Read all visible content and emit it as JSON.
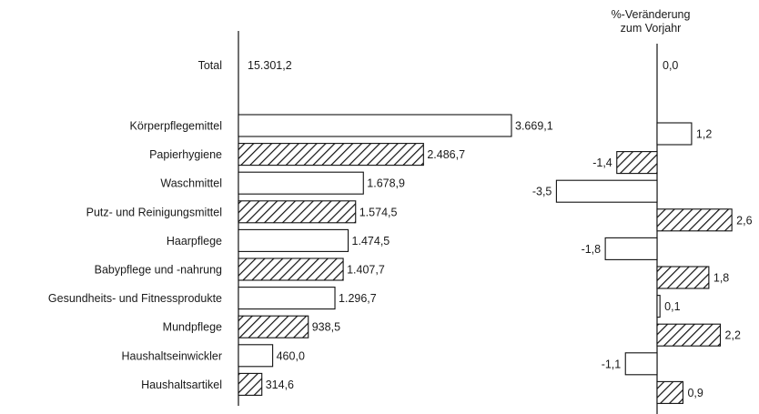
{
  "chart_data": [
    {
      "type": "bar",
      "orientation": "horizontal",
      "total": {
        "label": "Total",
        "value_text": "15.301,2",
        "value": 15301.2
      },
      "categories": [
        "Körperpflegemittel",
        "Papierhygiene",
        "Waschmittel",
        "Putz- und Reinigungsmittel",
        "Haarpflege",
        "Babypflege und -nahrung",
        "Gesundheits- und Fitnessprodukte",
        "Mundpflege",
        "Haushaltseinwickler",
        "Haushaltsartikel"
      ],
      "values": [
        3669.1,
        2486.7,
        1678.9,
        1574.5,
        1474.5,
        1407.7,
        1296.7,
        938.5,
        460.0,
        314.6
      ],
      "value_labels": [
        "3.669,1",
        "2.486,7",
        "1.678,9",
        "1.574,5",
        "1.474,5",
        "1.407,7",
        "1.296,7",
        "938,5",
        "460,0",
        "314,6"
      ],
      "bar_styles": [
        "plain",
        "hatched",
        "plain",
        "hatched",
        "plain",
        "hatched",
        "plain",
        "hatched",
        "plain",
        "hatched"
      ],
      "xlim": [
        0,
        3669.1
      ],
      "grid": false
    },
    {
      "type": "bar",
      "orientation": "horizontal",
      "title_lines": [
        "%-Veränderung",
        "zum Vorjahr"
      ],
      "total": {
        "value_text": "0,0",
        "value": 0.0
      },
      "values": [
        1.2,
        -1.4,
        -3.5,
        2.6,
        -1.8,
        1.8,
        0.1,
        2.2,
        -1.1,
        0.9
      ],
      "value_labels": [
        "1,2",
        "-1,4",
        "-3,5",
        "2,6",
        "-1,8",
        "1,8",
        "0,1",
        "2,2",
        "-1,1",
        "0,9"
      ],
      "bar_styles": [
        "plain",
        "hatched",
        "plain",
        "hatched",
        "plain",
        "hatched",
        "plain",
        "hatched",
        "plain",
        "hatched"
      ],
      "xlim": [
        -3.5,
        2.6
      ],
      "grid": false
    }
  ]
}
